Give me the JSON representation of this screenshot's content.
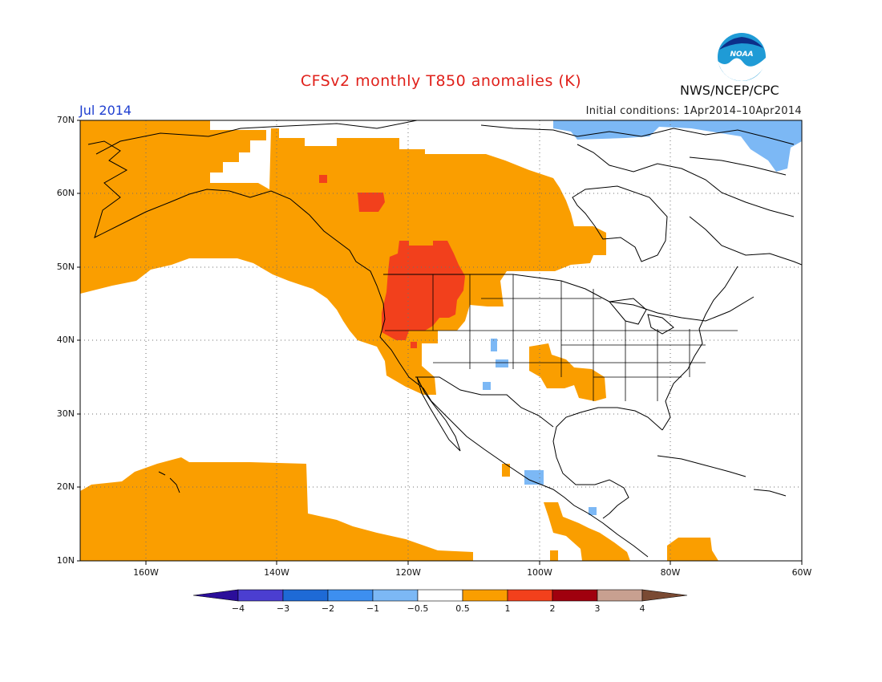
{
  "title": "CFSv2 monthly T850 anomalies (K)",
  "month_label": "Jul 2014",
  "initial_conditions": "Initial conditions:  1Apr2014–10Apr2014",
  "agency": "NWS/NCEP/CPC",
  "logo": {
    "text": "NOAA",
    "icon": "noaa-logo-icon"
  },
  "lat_labels": [
    "70N",
    "60N",
    "50N",
    "40N",
    "30N",
    "20N",
    "10N"
  ],
  "lon_labels": [
    "160W",
    "140W",
    "120W",
    "100W",
    "80W",
    "60W"
  ],
  "colorbar": {
    "tick_labels": [
      "−4",
      "−3",
      "−2",
      "−1",
      "−0.5",
      "0.5",
      "1",
      "2",
      "3",
      "4"
    ],
    "colors": [
      "#2b0e9a",
      "#4b3ed0",
      "#1e6ad6",
      "#3d8ff0",
      "#7cb8f5",
      "#ffffff",
      "#fa9e00",
      "#f2401c",
      "#a0000e",
      "#c8a090",
      "#7a4a33"
    ]
  },
  "colors": {
    "warm_05_1": "#fa9e00",
    "warm_1_2": "#f2401c",
    "cool_neg05_neg1": "#7cb8f5",
    "title": "#e0201a",
    "month": "#1f3fd0"
  }
}
